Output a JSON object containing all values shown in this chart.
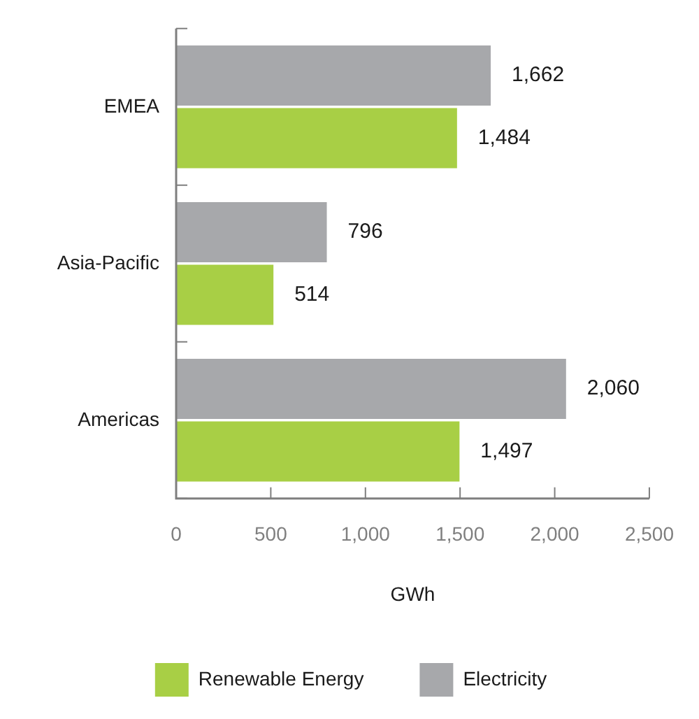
{
  "chart_data": {
    "type": "bar",
    "orientation": "horizontal",
    "categories": [
      "EMEA",
      "Asia-Pacific",
      "Americas"
    ],
    "series": [
      {
        "name": "Electricity",
        "color": "#a7a8ab",
        "values": [
          1662,
          796,
          2060
        ],
        "value_labels": [
          "1,662",
          "796",
          "2,060"
        ]
      },
      {
        "name": "Renewable Energy",
        "color": "#a8cf45",
        "values": [
          1484,
          514,
          1497
        ],
        "value_labels": [
          "1,484",
          "514",
          "1,497"
        ]
      }
    ],
    "xlim": [
      0,
      2500
    ],
    "xticks": [
      0,
      500,
      {
        "value": 1000,
        "label": "1,000"
      },
      {
        "value": 1500,
        "label": "1,500"
      },
      {
        "value": 2000,
        "label": "2,000"
      },
      {
        "value": 2500,
        "label": "2,500"
      }
    ],
    "xlabel": "GWh",
    "legend": "bottom"
  }
}
